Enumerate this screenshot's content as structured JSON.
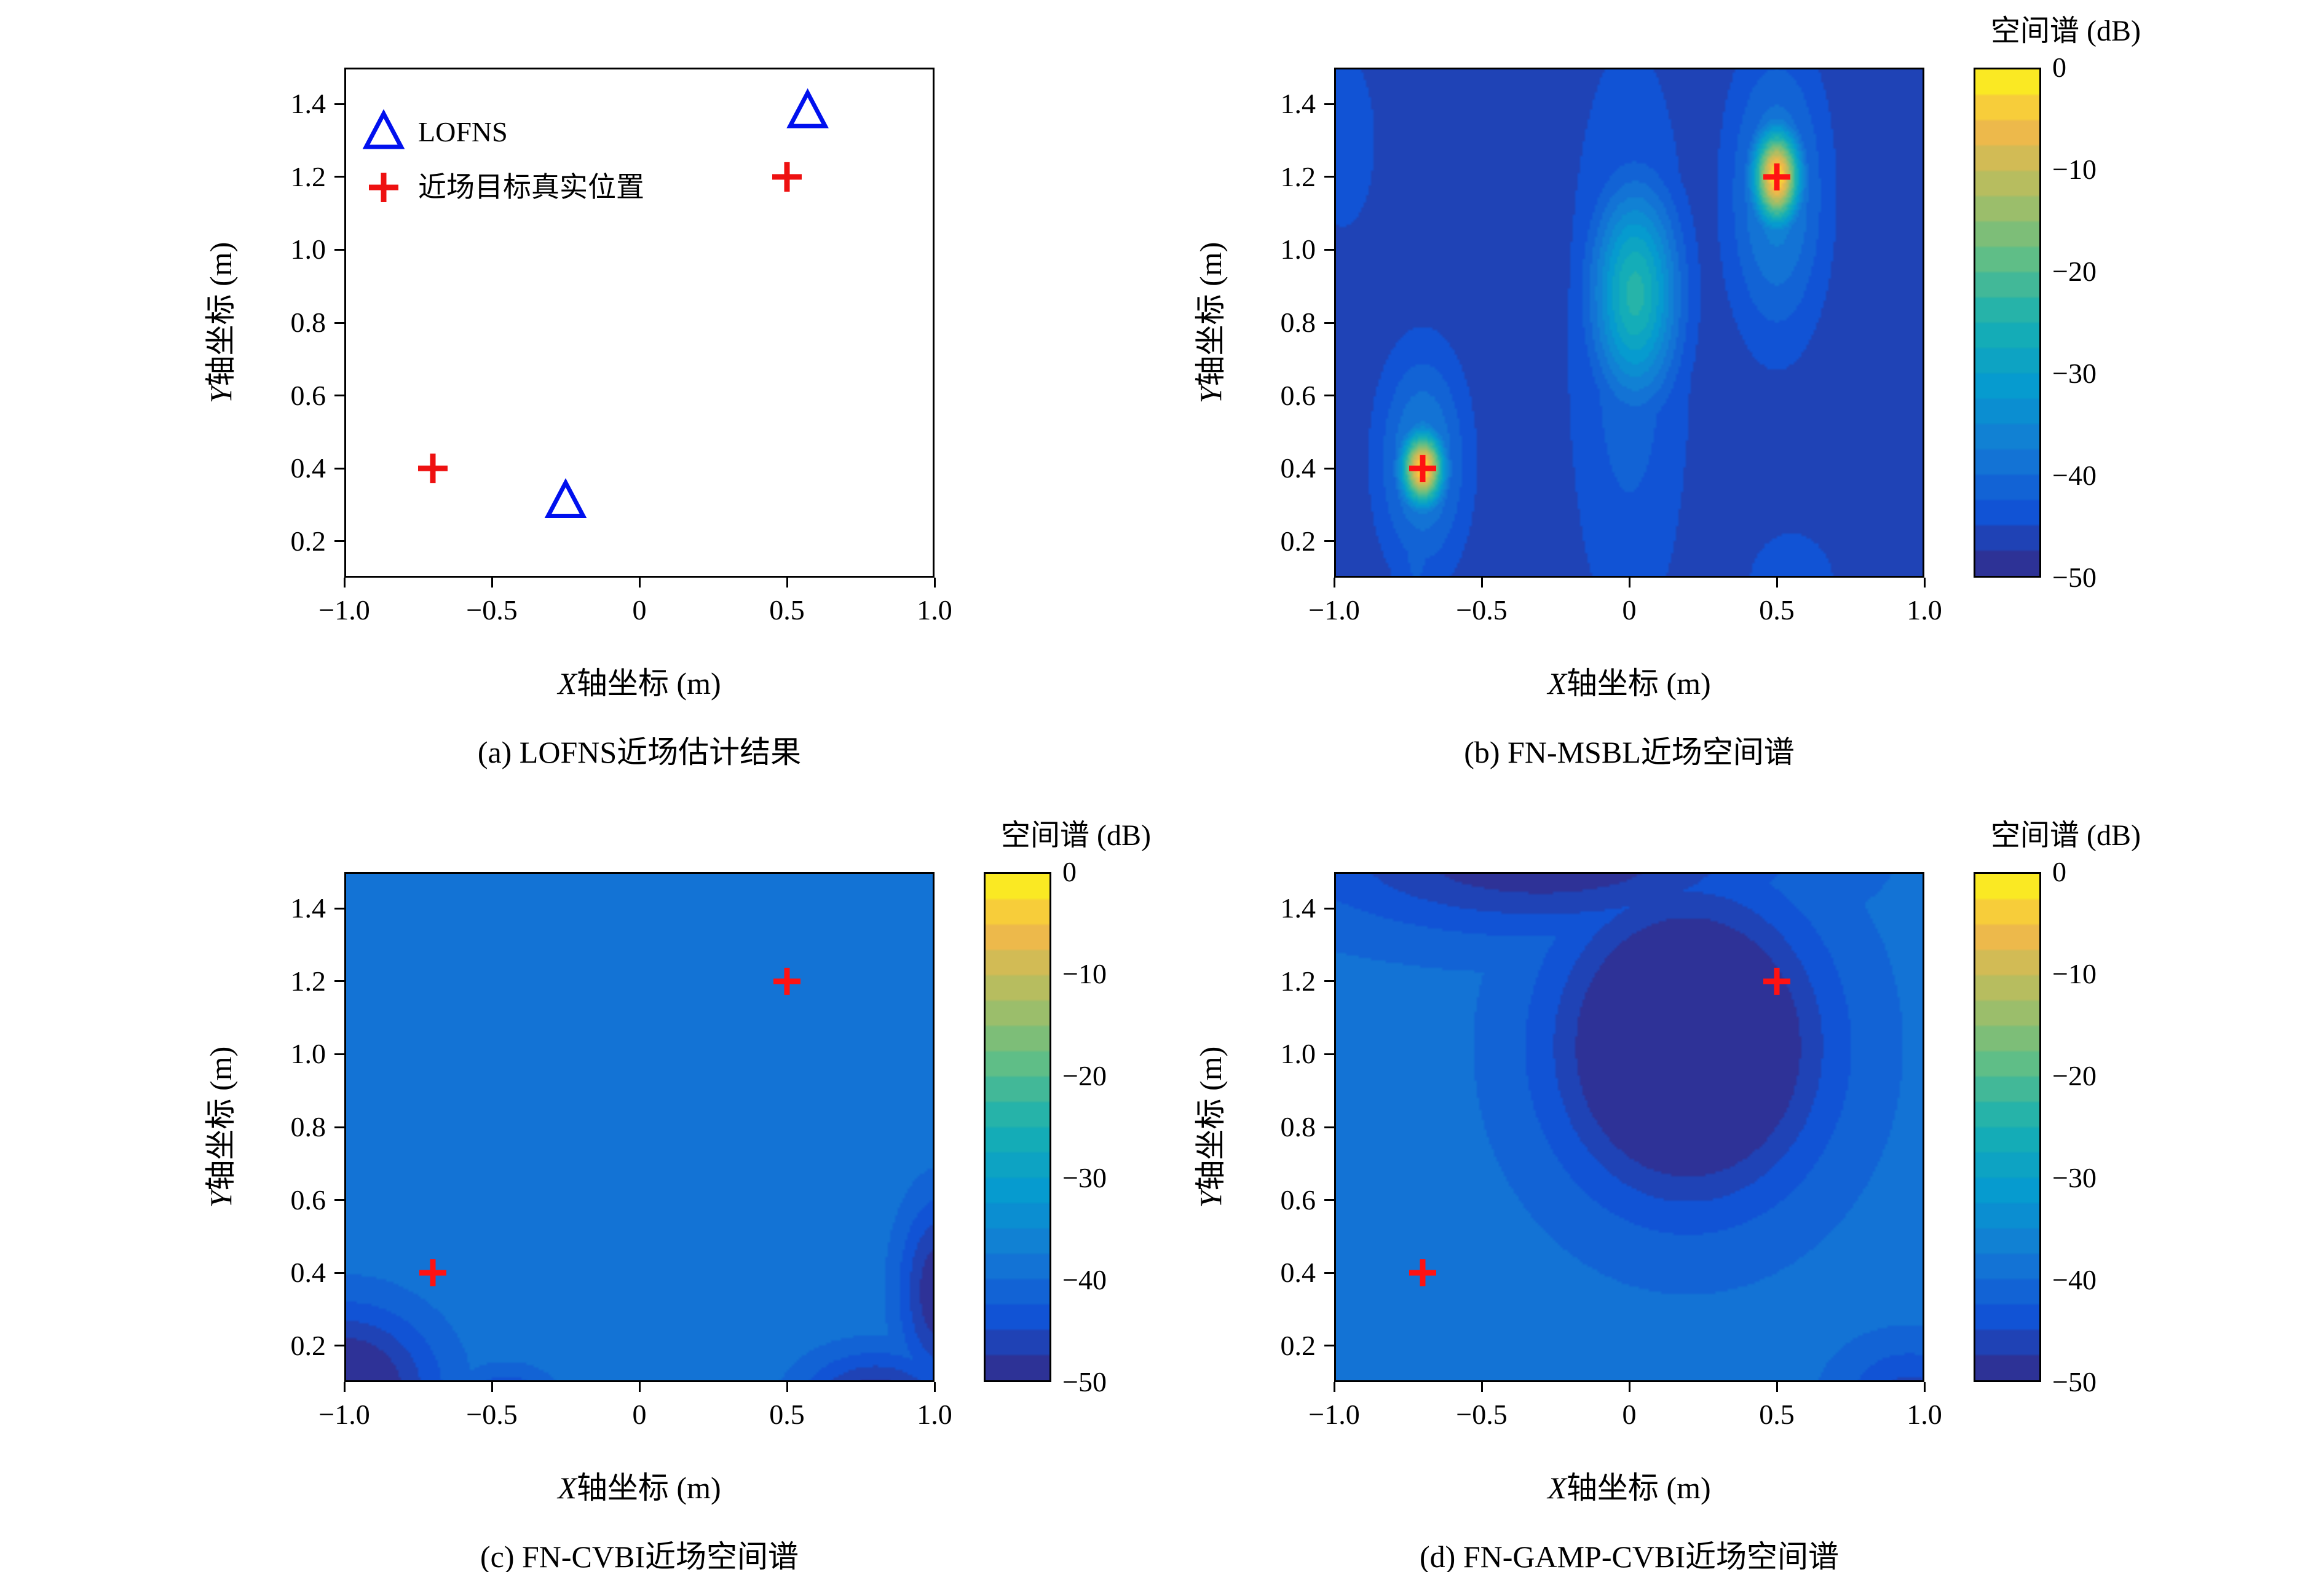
{
  "colors": {
    "axis": "#000000",
    "marker_blue": "#0010ee",
    "marker_red": "#ee1111",
    "heatmap_target_red": "#ff1212"
  },
  "colormap": {
    "name": "parula-like",
    "levels": 20,
    "stops": [
      [
        0.0,
        "#352a87"
      ],
      [
        0.125,
        "#1153d5"
      ],
      [
        0.25,
        "#147bd5"
      ],
      [
        0.375,
        "#069bcf"
      ],
      [
        0.5,
        "#18b1b2"
      ],
      [
        0.625,
        "#5fbe87"
      ],
      [
        0.75,
        "#aabe64"
      ],
      [
        0.875,
        "#edb94b"
      ],
      [
        0.95,
        "#fcd732"
      ],
      [
        1.0,
        "#f9fb14"
      ]
    ]
  },
  "chart_data": [
    {
      "type": "scatter",
      "title": "(a) LOFNS近场估计结果",
      "xlabel": "X轴坐标 (m)",
      "ylabel": "Y轴坐标 (m)",
      "xlim": [
        -1,
        1
      ],
      "ylim": [
        0.1,
        1.5
      ],
      "x_tick_values": [
        -1.0,
        -0.5,
        0,
        0.5,
        1.0
      ],
      "x_tick_labels": [
        "−1.0",
        "−0.5",
        "0",
        "0.5",
        "1.0"
      ],
      "y_tick_values": [
        0.2,
        0.4,
        0.6,
        0.8,
        1.0,
        1.2,
        1.4
      ],
      "y_tick_labels": [
        "0.2",
        "0.4",
        "0.6",
        "0.8",
        "1.0",
        "1.2",
        "1.4"
      ],
      "legend_position": "top-left",
      "series": [
        {
          "name": "LOFNS",
          "marker": "triangle",
          "color": "#0010ee",
          "points": [
            [
              -0.25,
              0.31
            ],
            [
              0.57,
              1.38
            ]
          ]
        },
        {
          "name": "近场目标真实位置",
          "marker": "plus",
          "color": "#ee1111",
          "points": [
            [
              -0.7,
              0.4
            ],
            [
              0.5,
              1.2
            ]
          ]
        }
      ]
    },
    {
      "type": "heatmap",
      "title": "(b) FN-MSBL近场空间谱",
      "xlabel": "X轴坐标 (m)",
      "ylabel": "Y轴坐标 (m)",
      "xlim": [
        -1,
        1
      ],
      "ylim": [
        0.1,
        1.5
      ],
      "x_tick_values": [
        -1.0,
        -0.5,
        0,
        0.5,
        1.0
      ],
      "x_tick_labels": [
        "−1.0",
        "−0.5",
        "0",
        "0.5",
        "1.0"
      ],
      "y_tick_values": [
        0.2,
        0.4,
        0.6,
        0.8,
        1.0,
        1.2,
        1.4
      ],
      "y_tick_labels": [
        "0.2",
        "0.4",
        "0.6",
        "0.8",
        "1.0",
        "1.2",
        "1.4"
      ],
      "colorbar_title": "空间谱 (dB)",
      "colorbar_tick_labels": [
        "0",
        "−10",
        "−20",
        "−30",
        "−40",
        "−50"
      ],
      "colorbar_range": [
        -50,
        0
      ],
      "background_db": -47,
      "blobs": [
        {
          "x": -0.7,
          "y": 0.4,
          "sx": 0.05,
          "sy": 0.07,
          "peak_db": -1
        },
        {
          "x": -0.7,
          "y": 0.42,
          "sx": 0.1,
          "sy": 0.2,
          "peak_db": -36
        },
        {
          "x": -0.72,
          "y": 0.2,
          "sx": 0.07,
          "sy": 0.22,
          "peak_db": -42
        },
        {
          "x": 0.5,
          "y": 1.2,
          "sx": 0.055,
          "sy": 0.09,
          "peak_db": -1
        },
        {
          "x": 0.5,
          "y": 1.15,
          "sx": 0.11,
          "sy": 0.26,
          "peak_db": -36
        },
        {
          "x": 0.02,
          "y": 0.88,
          "sx": 0.1,
          "sy": 0.2,
          "peak_db": -24
        },
        {
          "x": 0.0,
          "y": 0.75,
          "sx": 0.14,
          "sy": 0.55,
          "peak_db": -41
        },
        {
          "x": 0.55,
          "y": 0.08,
          "sx": 0.12,
          "sy": 0.12,
          "peak_db": -43
        },
        {
          "x": -0.97,
          "y": 1.3,
          "sx": 0.09,
          "sy": 0.2,
          "peak_db": -43
        }
      ],
      "targets": [
        [
          -0.7,
          0.4
        ],
        [
          0.5,
          1.2
        ]
      ],
      "target_color": "#ff1212"
    },
    {
      "type": "heatmap",
      "title": "(c) FN-CVBI近场空间谱",
      "xlabel": "X轴坐标 (m)",
      "ylabel": "Y轴坐标 (m)",
      "xlim": [
        -1,
        1
      ],
      "ylim": [
        0.1,
        1.5
      ],
      "x_tick_values": [
        -1.0,
        -0.5,
        0,
        0.5,
        1.0
      ],
      "x_tick_labels": [
        "−1.0",
        "−0.5",
        "0",
        "0.5",
        "1.0"
      ],
      "y_tick_values": [
        0.2,
        0.4,
        0.6,
        0.8,
        1.0,
        1.2,
        1.4
      ],
      "y_tick_labels": [
        "0.2",
        "0.4",
        "0.6",
        "0.8",
        "1.0",
        "1.2",
        "1.4"
      ],
      "colorbar_title": "空间谱 (dB)",
      "colorbar_tick_labels": [
        "0",
        "−10",
        "−20",
        "−30",
        "−40",
        "−50"
      ],
      "colorbar_range": [
        -50,
        0
      ],
      "background_db": -38,
      "blobs": [
        {
          "x": -0.7,
          "y": 0.4,
          "sx": 0.05,
          "sy": 0.07,
          "peak_db": -1
        },
        {
          "x": -0.7,
          "y": 0.4,
          "sx": 0.09,
          "sy": 0.16,
          "peak_db": -31
        },
        {
          "x": 0.5,
          "y": 1.2,
          "sx": 0.06,
          "sy": 0.1,
          "peak_db": -1
        },
        {
          "x": 0.5,
          "y": 1.12,
          "sx": 0.12,
          "sy": 0.3,
          "peak_db": -28
        },
        {
          "x": 0.47,
          "y": 0.55,
          "sx": 0.1,
          "sy": 0.35,
          "peak_db": -35
        },
        {
          "x": -0.05,
          "y": 0.22,
          "sx": 0.1,
          "sy": 0.22,
          "peak_db": -34
        },
        {
          "x": 0.3,
          "y": 0.12,
          "sx": 0.09,
          "sy": 0.12,
          "peak_db": -35
        },
        {
          "x": -1.0,
          "y": 0.08,
          "sx": 0.22,
          "sy": 0.16,
          "peak_db": -52
        },
        {
          "x": 0.8,
          "y": 0.04,
          "sx": 0.18,
          "sy": 0.1,
          "peak_db": -50
        },
        {
          "x": 1.02,
          "y": 0.35,
          "sx": 0.1,
          "sy": 0.18,
          "peak_db": -50
        },
        {
          "x": -0.45,
          "y": 0.04,
          "sx": 0.12,
          "sy": 0.07,
          "peak_db": -46
        }
      ],
      "targets": [
        [
          -0.7,
          0.4
        ],
        [
          0.5,
          1.2
        ]
      ],
      "target_color": "#ff1212"
    },
    {
      "type": "heatmap",
      "title": "(d) FN-GAMP-CVBI近场空间谱",
      "xlabel": "X轴坐标 (m)",
      "ylabel": "Y轴坐标 (m)",
      "xlim": [
        -1,
        1
      ],
      "ylim": [
        0.1,
        1.5
      ],
      "x_tick_values": [
        -1.0,
        -0.5,
        0,
        0.5,
        1.0
      ],
      "x_tick_labels": [
        "−1.0",
        "−0.5",
        "0",
        "0.5",
        "1.0"
      ],
      "y_tick_values": [
        0.2,
        0.4,
        0.6,
        0.8,
        1.0,
        1.2,
        1.4
      ],
      "y_tick_labels": [
        "0.2",
        "0.4",
        "0.6",
        "0.8",
        "1.0",
        "1.2",
        "1.4"
      ],
      "colorbar_title": "空间谱 (dB)",
      "colorbar_tick_labels": [
        "0",
        "−10",
        "−20",
        "−30",
        "−40",
        "−50"
      ],
      "colorbar_range": [
        -50,
        0
      ],
      "background_db": -39,
      "blobs": [
        {
          "x": -0.7,
          "y": 0.4,
          "sx": 0.05,
          "sy": 0.07,
          "peak_db": -1
        },
        {
          "x": -0.7,
          "y": 0.4,
          "sx": 0.08,
          "sy": 0.13,
          "peak_db": -33
        },
        {
          "x": 0.5,
          "y": 1.2,
          "sx": 0.055,
          "sy": 0.09,
          "peak_db": -1
        },
        {
          "x": 0.5,
          "y": 1.12,
          "sx": 0.08,
          "sy": 0.25,
          "peak_db": -30
        },
        {
          "x": 0.46,
          "y": 0.45,
          "sx": 0.06,
          "sy": 0.4,
          "peak_db": -36
        },
        {
          "x": 0.15,
          "y": 0.06,
          "sx": 0.11,
          "sy": 0.1,
          "peak_db": -35
        },
        {
          "x": 0.2,
          "y": 1.02,
          "sx": 0.3,
          "sy": 0.28,
          "peak_db": -58
        },
        {
          "x": -0.3,
          "y": 1.55,
          "sx": 0.55,
          "sy": 0.15,
          "peak_db": -50
        },
        {
          "x": 0.95,
          "y": 0.06,
          "sx": 0.16,
          "sy": 0.1,
          "peak_db": -46
        }
      ],
      "targets": [
        [
          -0.7,
          0.4
        ],
        [
          0.5,
          1.2
        ]
      ],
      "target_color": "#ff1212"
    }
  ]
}
